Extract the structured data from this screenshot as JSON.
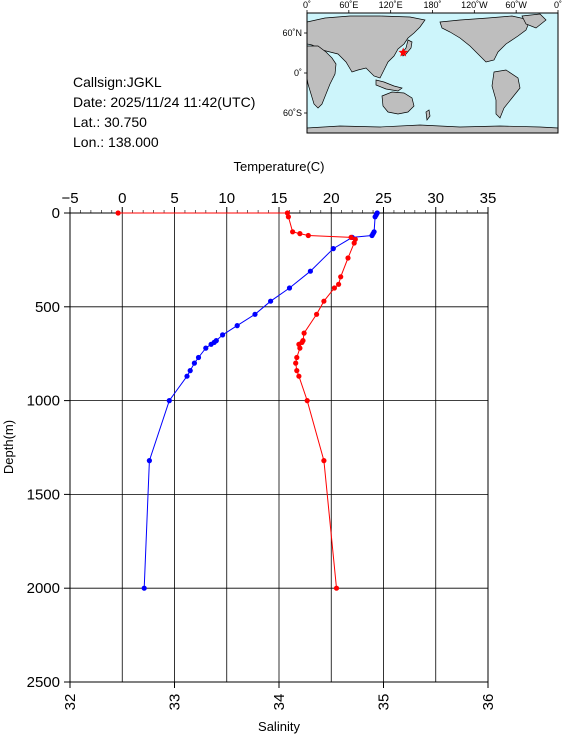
{
  "info": {
    "callsign": "Callsign:JGKL",
    "date": "Date:  2025/11/24 11:42(UTC)",
    "lat": "Lat.:  30.750",
    "lon": "Lon.:  138.000"
  },
  "map": {
    "lon_ticks": [
      "0˚",
      "60˚E",
      "120˚E",
      "180˚",
      "120˚W",
      "60˚W",
      "0˚"
    ],
    "lat_ticks": [
      "60˚N",
      "0˚",
      "60˚S"
    ],
    "ocean_color": "#cdf5fb",
    "land_color": "#bebebe",
    "marker": {
      "lon": 138.0,
      "lat": 30.75,
      "color": "#ff0000"
    }
  },
  "chart_data": {
    "type": "line",
    "top_axis": {
      "label": "Temperature(C)",
      "range": [
        -5,
        35
      ],
      "ticks": [
        "−5",
        "0",
        "5",
        "10",
        "15",
        "20",
        "25",
        "30",
        "35"
      ]
    },
    "bottom_axis": {
      "label": "Salinity",
      "range": [
        32,
        36
      ],
      "ticks": [
        "32",
        "33",
        "34",
        "35",
        "36"
      ]
    },
    "y_axis": {
      "label": "Depth(m)",
      "range": [
        0,
        2500
      ],
      "inverted": true,
      "ticks": [
        "0",
        "500",
        "1000",
        "1500",
        "2000",
        "2500"
      ]
    },
    "grid": true,
    "series": [
      {
        "variable": "temperature",
        "axis": "top",
        "color": "#0000ff",
        "points": [
          [
            24.4,
            0
          ],
          [
            24.3,
            10
          ],
          [
            24.2,
            20
          ],
          [
            24.1,
            100
          ],
          [
            24.0,
            110
          ],
          [
            23.9,
            120
          ],
          [
            22.0,
            130
          ],
          [
            20.2,
            190
          ],
          [
            18.0,
            310
          ],
          [
            16.0,
            400
          ],
          [
            14.2,
            470
          ],
          [
            12.7,
            540
          ],
          [
            11.0,
            600
          ],
          [
            9.6,
            650
          ],
          [
            9.0,
            680
          ],
          [
            8.8,
            690
          ],
          [
            8.5,
            700
          ],
          [
            8.0,
            720
          ],
          [
            7.3,
            770
          ],
          [
            6.9,
            800
          ],
          [
            6.5,
            840
          ],
          [
            6.2,
            870
          ],
          [
            4.5,
            1000
          ],
          [
            2.6,
            1320
          ],
          [
            2.1,
            2000
          ]
        ]
      },
      {
        "variable": "salinity",
        "axis": "bottom",
        "color": "#ff0000",
        "points": [
          [
            32.46,
            0
          ],
          [
            34.08,
            0
          ],
          [
            34.09,
            20
          ],
          [
            34.13,
            100
          ],
          [
            34.2,
            110
          ],
          [
            34.28,
            120
          ],
          [
            34.69,
            130
          ],
          [
            34.73,
            140
          ],
          [
            34.72,
            160
          ],
          [
            34.66,
            240
          ],
          [
            34.59,
            340
          ],
          [
            34.57,
            380
          ],
          [
            34.53,
            400
          ],
          [
            34.43,
            470
          ],
          [
            34.36,
            540
          ],
          [
            34.24,
            640
          ],
          [
            34.23,
            680
          ],
          [
            34.22,
            690
          ],
          [
            34.19,
            700
          ],
          [
            34.2,
            720
          ],
          [
            34.17,
            770
          ],
          [
            34.16,
            800
          ],
          [
            34.17,
            840
          ],
          [
            34.19,
            870
          ],
          [
            34.27,
            1000
          ],
          [
            34.43,
            1320
          ],
          [
            34.55,
            2000
          ]
        ]
      }
    ]
  }
}
